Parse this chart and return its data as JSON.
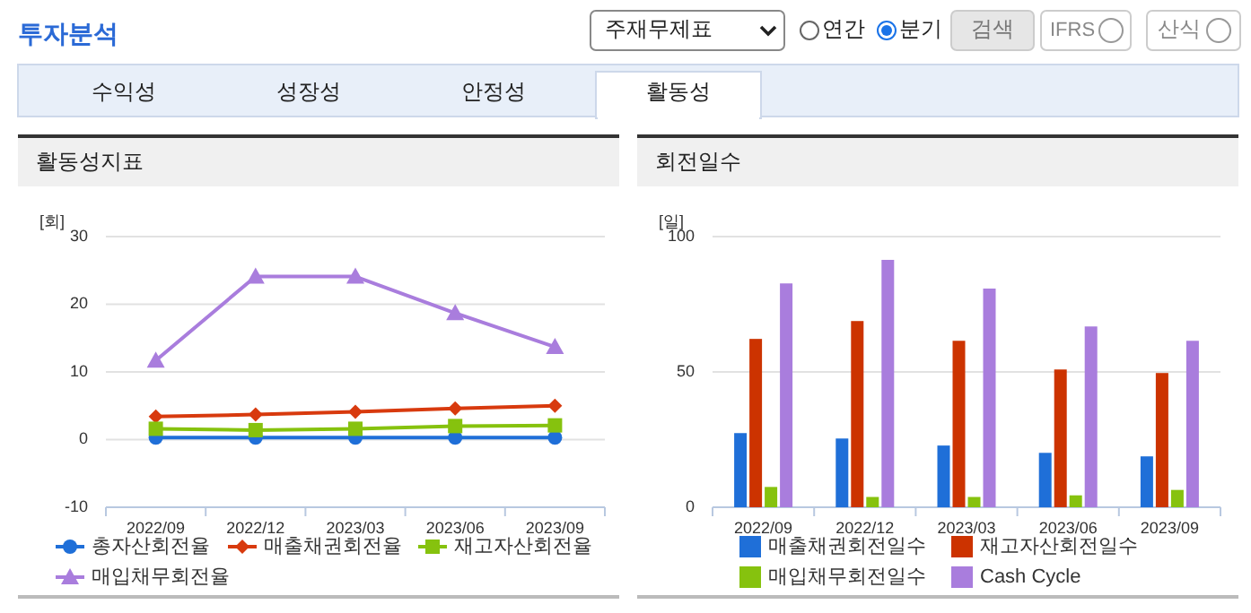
{
  "chart_data": [
    {
      "type": "other",
      "title": "투자분석",
      "annotations": [
        "주재무제표",
        "연간",
        "분기",
        "검색",
        "IFRS",
        "산식",
        "수익성",
        "성장성",
        "안정성",
        "활동성"
      ]
    },
    {
      "type": "line",
      "title": "활동성지표",
      "ylabel": "[회]",
      "categories": [
        "2022/09",
        "2022/12",
        "2023/03",
        "2023/06",
        "2023/09"
      ],
      "ylim": [
        -10,
        30
      ],
      "yticks": [
        -10,
        0,
        10,
        20,
        30
      ],
      "grid": "y",
      "legend": "bottom",
      "series": [
        {
          "name": "총자산회전율",
          "color": "#1f6fd8",
          "marker": "circle",
          "values": [
            0.3,
            0.3,
            0.3,
            0.3,
            0.3
          ]
        },
        {
          "name": "매출채권회전율",
          "color": "#d83a0e",
          "marker": "diamond",
          "values": [
            3.4,
            3.7,
            4.1,
            4.6,
            5.0
          ]
        },
        {
          "name": "재고자산회전율",
          "color": "#86c20e",
          "marker": "square",
          "values": [
            1.6,
            1.4,
            1.6,
            2.0,
            2.1
          ]
        },
        {
          "name": "매입채무회전율",
          "color": "#a97ddd",
          "marker": "triangle",
          "values": [
            11.7,
            24.1,
            24.1,
            18.7,
            13.7
          ]
        }
      ]
    },
    {
      "type": "bar",
      "title": "회전일수",
      "ylabel": "[일]",
      "categories": [
        "2022/09",
        "2022/12",
        "2023/03",
        "2023/06",
        "2023/09"
      ],
      "ylim": [
        0,
        100
      ],
      "yticks": [
        0,
        50,
        100
      ],
      "grid": "y",
      "legend": "bottom",
      "series": [
        {
          "name": "매출채권회전일수",
          "color": "#1f6fd8",
          "values": [
            27.4,
            25.4,
            22.8,
            20.1,
            18.8
          ]
        },
        {
          "name": "재고자산회전일수",
          "color": "#cc3300",
          "values": [
            62.2,
            68.8,
            61.5,
            50.9,
            49.6
          ]
        },
        {
          "name": "매입채무회전일수",
          "color": "#86c20e",
          "values": [
            7.5,
            3.8,
            3.8,
            4.4,
            6.4
          ]
        },
        {
          "name": "Cash Cycle",
          "color": "#a97ddd",
          "values": [
            82.7,
            91.4,
            80.8,
            66.8,
            61.5
          ]
        }
      ]
    }
  ]
}
